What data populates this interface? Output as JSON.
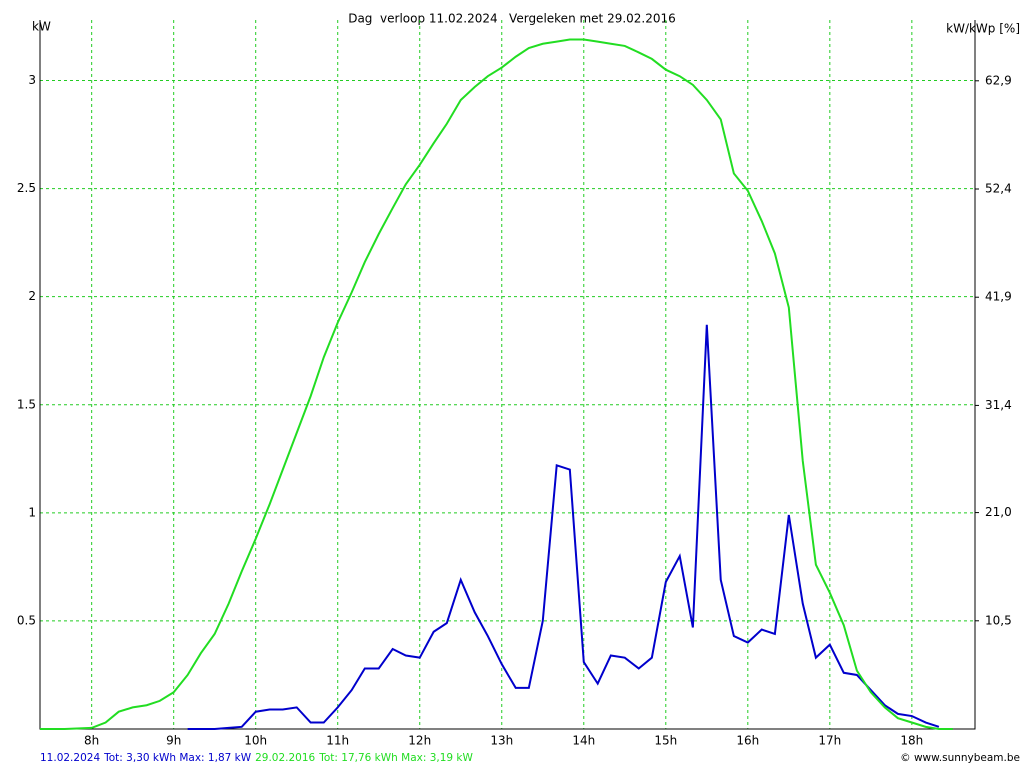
{
  "chart_data": {
    "type": "line",
    "title": "Dag  verloop 11.02.2024   Vergeleken met 29.02.2016",
    "y_label": "kW",
    "y2_label": "kW/kWp [%]",
    "credit": "© www.sunnybeam.be",
    "xlim": [
      7.37,
      18.77
    ],
    "xticks": [
      {
        "value": 8,
        "label": "8h"
      },
      {
        "value": 9,
        "label": "9h"
      },
      {
        "value": 10,
        "label": "10h"
      },
      {
        "value": 11,
        "label": "11h"
      },
      {
        "value": 12,
        "label": "12h"
      },
      {
        "value": 13,
        "label": "13h"
      },
      {
        "value": 14,
        "label": "14h"
      },
      {
        "value": 15,
        "label": "15h"
      },
      {
        "value": 16,
        "label": "16h"
      },
      {
        "value": 17,
        "label": "17h"
      },
      {
        "value": 18,
        "label": "18h"
      }
    ],
    "ylim": [
      0,
      3.28
    ],
    "yticks": [
      0.5,
      1,
      1.5,
      2,
      2.5,
      3
    ],
    "y2lim": [
      0,
      68.8
    ],
    "y2ticks": [
      {
        "value": 10.5,
        "label": "10,5"
      },
      {
        "value": 21.0,
        "label": "21,0"
      },
      {
        "value": 31.4,
        "label": "31,4"
      },
      {
        "value": 41.9,
        "label": "41,9"
      },
      {
        "value": 52.4,
        "label": "52,4"
      },
      {
        "value": 62.9,
        "label": "62,9"
      }
    ],
    "grid": true,
    "grid_color": "#22cc22",
    "series": [
      {
        "name": "11.02.2024",
        "summary": "Tot: 3,30 kWh Max: 1,87 kW",
        "color": "#0000cc",
        "x": [
          9.17,
          9.33,
          9.5,
          9.67,
          9.83,
          10,
          10.17,
          10.33,
          10.5,
          10.67,
          10.83,
          11,
          11.17,
          11.33,
          11.5,
          11.67,
          11.83,
          12,
          12.17,
          12.33,
          12.5,
          12.67,
          12.83,
          13,
          13.17,
          13.33,
          13.5,
          13.67,
          13.83,
          14,
          14.17,
          14.33,
          14.5,
          14.67,
          14.83,
          15,
          15.17,
          15.33,
          15.5,
          15.67,
          15.83,
          16,
          16.17,
          16.33,
          16.5,
          16.67,
          16.83,
          17,
          17.17,
          17.33,
          17.5,
          17.67,
          17.83,
          18,
          18.17,
          18.33
        ],
        "values": [
          0,
          0,
          0,
          0.005,
          0.01,
          0.08,
          0.09,
          0.09,
          0.1,
          0.03,
          0.03,
          0.1,
          0.18,
          0.28,
          0.28,
          0.37,
          0.34,
          0.33,
          0.45,
          0.49,
          0.69,
          0.54,
          0.43,
          0.3,
          0.19,
          0.19,
          0.5,
          1.22,
          1.2,
          0.31,
          0.21,
          0.34,
          0.33,
          0.28,
          0.33,
          0.68,
          0.8,
          0.47,
          1.87,
          0.69,
          0.43,
          0.4,
          0.46,
          0.44,
          0.99,
          0.58,
          0.33,
          0.39,
          0.26,
          0.25,
          0.18,
          0.11,
          0.07,
          0.06,
          0.03,
          0.01
        ]
      },
      {
        "name": "29.02.2016",
        "summary": "Tot: 17,76 kWh Max: 3,19 kW",
        "color": "#22dd22",
        "x": [
          7.37,
          7.67,
          8,
          8.17,
          8.33,
          8.5,
          8.67,
          8.83,
          9,
          9.17,
          9.33,
          9.5,
          9.67,
          9.83,
          10,
          10.17,
          10.33,
          10.5,
          10.67,
          10.83,
          11,
          11.17,
          11.33,
          11.5,
          11.67,
          11.83,
          12,
          12.17,
          12.33,
          12.5,
          12.67,
          12.83,
          13,
          13.17,
          13.33,
          13.5,
          13.67,
          13.83,
          14,
          14.17,
          14.33,
          14.5,
          14.67,
          14.83,
          15,
          15.17,
          15.33,
          15.5,
          15.67,
          15.83,
          16,
          16.17,
          16.33,
          16.5,
          16.67,
          16.83,
          17,
          17.17,
          17.33,
          17.5,
          17.67,
          17.83,
          18,
          18.17,
          18.33,
          18.5
        ],
        "values": [
          0,
          0,
          0.005,
          0.03,
          0.08,
          0.1,
          0.11,
          0.13,
          0.17,
          0.25,
          0.35,
          0.44,
          0.58,
          0.73,
          0.88,
          1.04,
          1.2,
          1.37,
          1.54,
          1.72,
          1.88,
          2.02,
          2.16,
          2.29,
          2.41,
          2.52,
          2.61,
          2.71,
          2.8,
          2.91,
          2.97,
          3.02,
          3.06,
          3.11,
          3.15,
          3.17,
          3.18,
          3.19,
          3.19,
          3.18,
          3.17,
          3.16,
          3.13,
          3.1,
          3.05,
          3.02,
          2.98,
          2.91,
          2.82,
          2.57,
          2.49,
          2.35,
          2.2,
          1.95,
          1.24,
          0.76,
          0.63,
          0.48,
          0.27,
          0.17,
          0.1,
          0.05,
          0.03,
          0.01,
          0,
          0
        ]
      }
    ]
  }
}
